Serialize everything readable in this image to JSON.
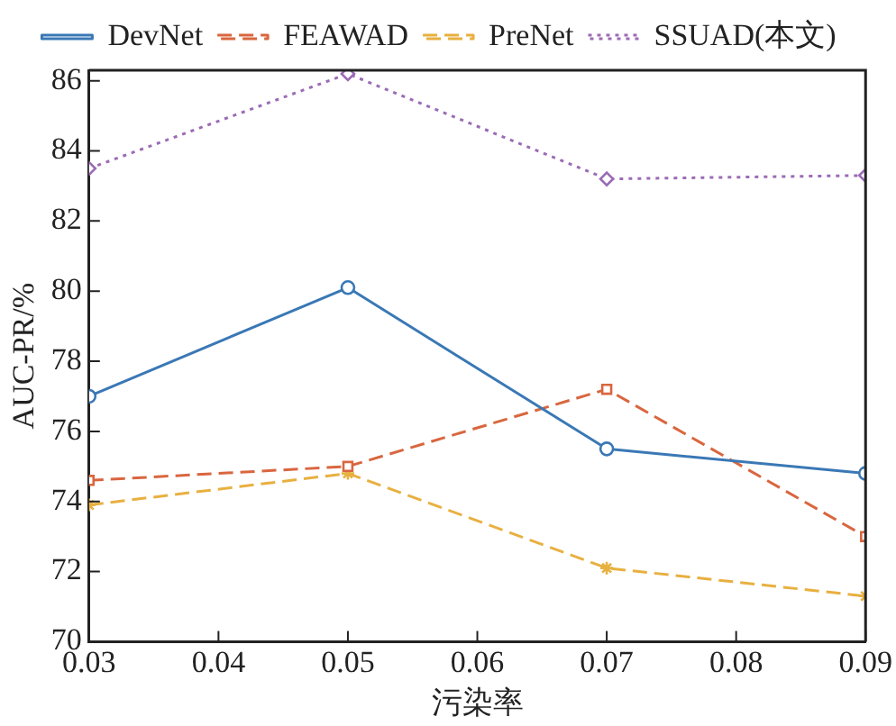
{
  "chart_data": {
    "type": "line",
    "xlabel": "污染率",
    "ylabel": "AUC-PR/%",
    "x": [
      0.03,
      0.05,
      0.07,
      0.09
    ],
    "xlim": [
      0.03,
      0.09
    ],
    "xticks": [
      0.03,
      0.04,
      0.05,
      0.06,
      0.07,
      0.08,
      0.09
    ],
    "ylim": [
      70,
      86.3
    ],
    "yticks": [
      70,
      72,
      74,
      76,
      78,
      80,
      82,
      84,
      86
    ],
    "grid": false,
    "legend": "top",
    "series": [
      {
        "name": "DevNet",
        "color": "#3a78b5",
        "values": [
          77.0,
          80.1,
          75.5,
          74.8
        ],
        "line_style": "solid",
        "marker": "circle"
      },
      {
        "name": "FEAWAD",
        "color": "#d9663f",
        "values": [
          74.6,
          75.0,
          77.2,
          73.0
        ],
        "line_style": "dashed",
        "marker": "square"
      },
      {
        "name": "PreNet",
        "color": "#e8b040",
        "values": [
          73.9,
          74.8,
          72.1,
          71.3
        ],
        "line_style": "dashed",
        "marker": "cross"
      },
      {
        "name": "SSUAD(本文)",
        "color": "#9b6bb5",
        "values": [
          83.5,
          86.2,
          83.2,
          83.3
        ],
        "line_style": "dotted",
        "marker": "diamond"
      }
    ]
  }
}
